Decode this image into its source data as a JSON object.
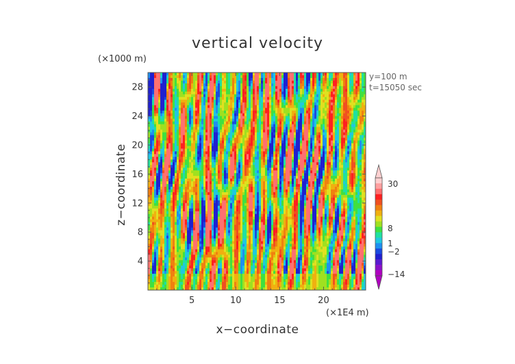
{
  "chart_data": {
    "type": "heatmap",
    "title": "vertical velocity",
    "xlabel": "x−coordinate",
    "ylabel": "z−coordinate",
    "x_unit": "(×1E4 m)",
    "y_unit": "(×1000 m)",
    "xlim": [
      0,
      24.8
    ],
    "ylim": [
      0,
      30
    ],
    "x_ticks": [
      5,
      10,
      15,
      20
    ],
    "x_tick_labels": [
      "5",
      "10",
      "15",
      "20"
    ],
    "y_ticks": [
      4,
      8,
      12,
      16,
      20,
      24,
      28
    ],
    "y_tick_labels": [
      "4",
      "8",
      "12",
      "16",
      "20",
      "24",
      "28"
    ],
    "info_lines": [
      "y=100  m",
      "t=15050 sec"
    ],
    "colorbar": {
      "levels": [
        -14,
        -2,
        1,
        8,
        30
      ],
      "labels": [
        "30",
        "8",
        "1",
        "−2",
        "−14"
      ],
      "colors": [
        "#b000c0",
        "#8a10c8",
        "#5a1ad0",
        "#2020d0",
        "#1a4ae0",
        "#1e90f0",
        "#20c8e0",
        "#20e0a0",
        "#40e040",
        "#a0e020",
        "#e0e020",
        "#f0b010",
        "#f08010",
        "#f05020",
        "#ff2020",
        "#ff7070",
        "#ffa0a0",
        "#ffd0d0"
      ]
    },
    "notes": "Turbulent vertical-velocity field; mostly green/yellow/orange with elongated vertical blue updraft/downdraft streaks."
  }
}
